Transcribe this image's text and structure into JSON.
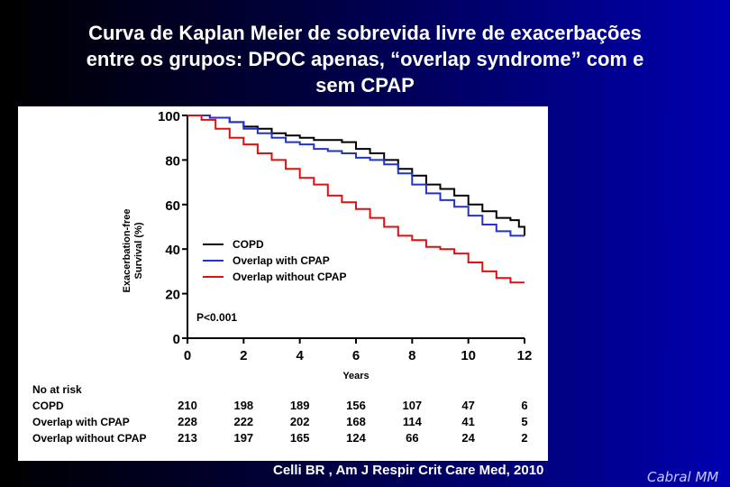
{
  "slide": {
    "title_lines": [
      "Curva de Kaplan Meier de sobrevida livre de exacerbações",
      "entre os grupos: DPOC apenas, “overlap syndrome” com e",
      "sem CPAP"
    ],
    "citation": "Celli BR , Am J Respir Crit Care Med, 2010",
    "signature": "Cabral MM"
  },
  "chart_data": {
    "type": "line",
    "step": true,
    "xlabel": "Years",
    "ylabel_lines": [
      "Exacerbation-free",
      "Survival (%)"
    ],
    "xlim": [
      0,
      12
    ],
    "ylim": [
      0,
      100
    ],
    "xticks": [
      0,
      2,
      4,
      6,
      8,
      10,
      12
    ],
    "yticks": [
      0,
      20,
      40,
      60,
      80,
      100
    ],
    "grid": false,
    "legend_position": "center-left",
    "annotation": "P<0.001",
    "series": [
      {
        "name": "COPD",
        "color": "#000000",
        "x": [
          0,
          0.8,
          1.5,
          2.0,
          2.5,
          3.0,
          3.5,
          4.0,
          4.5,
          5.0,
          5.5,
          6.0,
          6.5,
          7.0,
          7.5,
          8.0,
          8.5,
          9.0,
          9.5,
          10.0,
          10.5,
          11.0,
          11.5,
          11.8,
          12.0
        ],
        "values": [
          100,
          99,
          97,
          95,
          94,
          92,
          91,
          90,
          89,
          89,
          88,
          85,
          83,
          80,
          76,
          73,
          69,
          67,
          64,
          60,
          57,
          54,
          53,
          50,
          46
        ]
      },
      {
        "name": "Overlap with CPAP",
        "color": "#2233cc",
        "x": [
          0,
          0.8,
          1.5,
          2.0,
          2.5,
          3.0,
          3.5,
          4.0,
          4.5,
          5.0,
          5.5,
          6.0,
          6.5,
          7.0,
          7.5,
          8.0,
          8.5,
          9.0,
          9.5,
          10.0,
          10.5,
          11.0,
          11.5,
          12.0
        ],
        "values": [
          100,
          99,
          97,
          94,
          92,
          90,
          88,
          87,
          85,
          84,
          83,
          81,
          80,
          78,
          74,
          69,
          65,
          62,
          59,
          55,
          51,
          48,
          46,
          46
        ]
      },
      {
        "name": "Overlap without CPAP",
        "color": "#dd1111",
        "x": [
          0,
          0.5,
          1.0,
          1.5,
          2.0,
          2.5,
          3.0,
          3.5,
          4.0,
          4.5,
          5.0,
          5.5,
          6.0,
          6.5,
          7.0,
          7.5,
          8.0,
          8.5,
          9.0,
          9.5,
          10.0,
          10.5,
          11.0,
          11.5,
          12.0
        ],
        "values": [
          100,
          98,
          94,
          90,
          87,
          83,
          80,
          76,
          72,
          69,
          64,
          61,
          58,
          54,
          50,
          46,
          44,
          41,
          40,
          38,
          34,
          30,
          27,
          25,
          25
        ]
      }
    ],
    "at_risk": {
      "header": "No at risk",
      "rows": [
        {
          "label": "COPD",
          "values": [
            "210",
            "198",
            "189",
            "156",
            "107",
            "47",
            "6"
          ]
        },
        {
          "label": "Overlap with CPAP",
          "values": [
            "228",
            "222",
            "202",
            "168",
            "114",
            "41",
            "5"
          ]
        },
        {
          "label": "Overlap without CPAP",
          "values": [
            "213",
            "197",
            "165",
            "124",
            "66",
            "24",
            "2"
          ]
        }
      ]
    }
  }
}
